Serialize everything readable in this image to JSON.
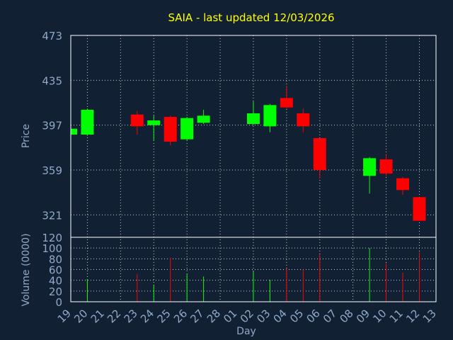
{
  "chart_data": {
    "type": "candlestick",
    "title": "SAIA - last updated 12/03/2026",
    "xlabel": "Day",
    "price_panel": {
      "ylabel": "Price",
      "yticks": [
        321,
        359,
        397,
        435,
        473
      ],
      "ylim": [
        302,
        473
      ]
    },
    "volume_panel": {
      "ylabel": "Volume (0000)",
      "yticks": [
        0,
        20,
        40,
        60,
        80,
        100,
        120
      ],
      "ylim": [
        0,
        120
      ]
    },
    "x_labels": [
      "19",
      "20",
      "21",
      "22",
      "23",
      "24",
      "25",
      "26",
      "27",
      "28",
      "01",
      "02",
      "03",
      "04",
      "05",
      "06",
      "07",
      "08",
      "09",
      "10",
      "11",
      "12",
      "13"
    ],
    "candles": [
      {
        "x": 0,
        "open": 389,
        "close": 394,
        "high": 395,
        "low": 388,
        "volume": 0
      },
      {
        "x": 1,
        "open": 389,
        "close": 410,
        "high": 411,
        "low": 388,
        "volume": 42
      },
      {
        "x": 4,
        "open": 406,
        "close": 396,
        "high": 409,
        "low": 389,
        "volume": 52
      },
      {
        "x": 5,
        "open": 397,
        "close": 401,
        "high": 405,
        "low": 384,
        "volume": 31
      },
      {
        "x": 6,
        "open": 404,
        "close": 383,
        "high": 405,
        "low": 380,
        "volume": 82
      },
      {
        "x": 7,
        "open": 385,
        "close": 403,
        "high": 404,
        "low": 384,
        "volume": 52
      },
      {
        "x": 8,
        "open": 399,
        "close": 405,
        "high": 410,
        "low": 398,
        "volume": 47
      },
      {
        "x": 11,
        "open": 398,
        "close": 407,
        "high": 417,
        "low": 397,
        "volume": 57
      },
      {
        "x": 12,
        "open": 396,
        "close": 414,
        "high": 415,
        "low": 391,
        "volume": 41
      },
      {
        "x": 13,
        "open": 420,
        "close": 412,
        "high": 430,
        "low": 411,
        "volume": 62
      },
      {
        "x": 14,
        "open": 407,
        "close": 396,
        "high": 411,
        "low": 391,
        "volume": 60
      },
      {
        "x": 15,
        "open": 386,
        "close": 359,
        "high": 386,
        "low": 352,
        "volume": 88
      },
      {
        "x": 18,
        "open": 354,
        "close": 369,
        "high": 370,
        "low": 339,
        "volume": 100
      },
      {
        "x": 19,
        "open": 368,
        "close": 356,
        "high": 372,
        "low": 354,
        "volume": 72
      },
      {
        "x": 20,
        "open": 352,
        "close": 342,
        "high": 353,
        "low": 338,
        "volume": 54
      },
      {
        "x": 21,
        "open": 336,
        "close": 316,
        "high": 336,
        "low": 316,
        "volume": 92
      }
    ],
    "colors": {
      "background": "#112033",
      "up": "#00ff00",
      "down": "#ff0000",
      "tick_text": "#8fa9c9",
      "title": "#ffff00",
      "grid": "#c8c8c8"
    },
    "grid": true
  }
}
